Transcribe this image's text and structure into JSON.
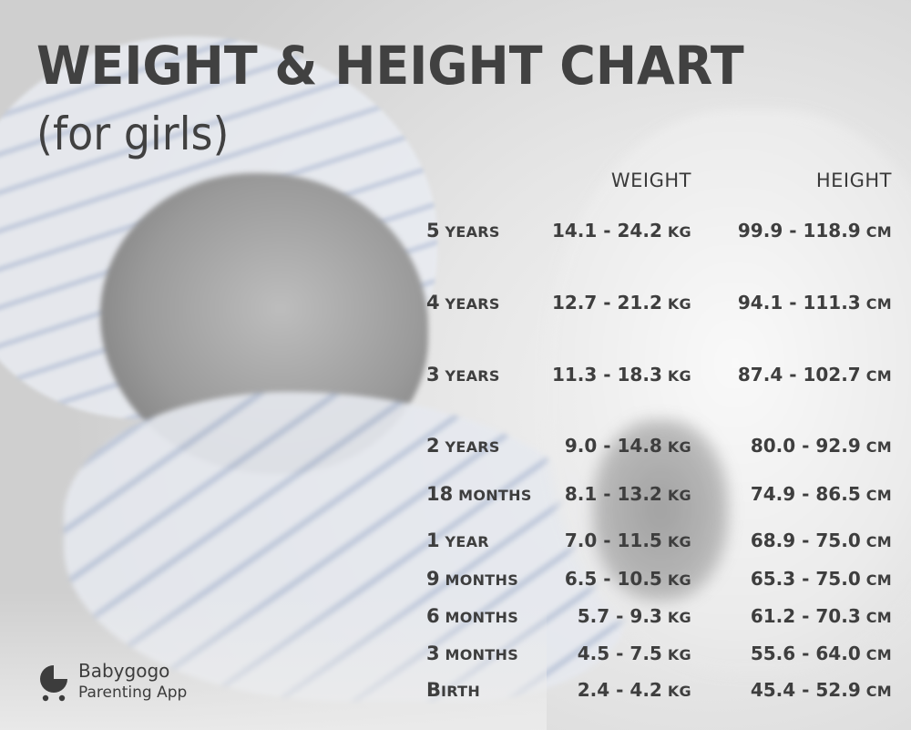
{
  "title": "WEIGHT & HEIGHT CHART",
  "subtitle": "(for girls)",
  "brand": {
    "name": "Babygogo",
    "tagline": "Parenting App",
    "logo_icon": "stroller-icon"
  },
  "colors": {
    "text": "#3e3e3e",
    "title": "#414141"
  },
  "chart_data": {
    "type": "table",
    "columns": [
      "WEIGHT",
      "HEIGHT"
    ],
    "weight_unit": "KG",
    "height_unit": "CM",
    "rows": [
      {
        "age_first": "5",
        "age_rest": " YEARS",
        "weight": "14.1 - 24.2",
        "height": "99.9 - 118.9"
      },
      {
        "age_first": "4",
        "age_rest": " YEARS",
        "weight": "12.7 - 21.2",
        "height": "94.1 - 111.3"
      },
      {
        "age_first": "3",
        "age_rest": " YEARS",
        "weight": "11.3 - 18.3",
        "height": "87.4 - 102.7"
      },
      {
        "age_first": "2",
        "age_rest": " YEARS",
        "weight": "9.0 - 14.8",
        "height": "80.0 - 92.9"
      },
      {
        "age_first": "18",
        "age_rest": " MONTHS",
        "weight": "8.1 - 13.2",
        "height": "74.9 - 86.5"
      },
      {
        "age_first": "1",
        "age_rest": " YEAR",
        "weight": "7.0 - 11.5",
        "height": "68.9 - 75.0"
      },
      {
        "age_first": "9",
        "age_rest": " MONTHS",
        "weight": "6.5 - 10.5",
        "height": "65.3 - 75.0"
      },
      {
        "age_first": "6",
        "age_rest": " MONTHS",
        "weight": "5.7 - 9.3",
        "height": "61.2 - 70.3"
      },
      {
        "age_first": "3",
        "age_rest": " MONTHS",
        "weight": "4.5 - 7.5",
        "height": "55.6 - 64.0"
      },
      {
        "age_first": "B",
        "age_rest": "IRTH",
        "weight": "2.4 - 4.2",
        "height": "45.4 - 52.9"
      }
    ]
  }
}
